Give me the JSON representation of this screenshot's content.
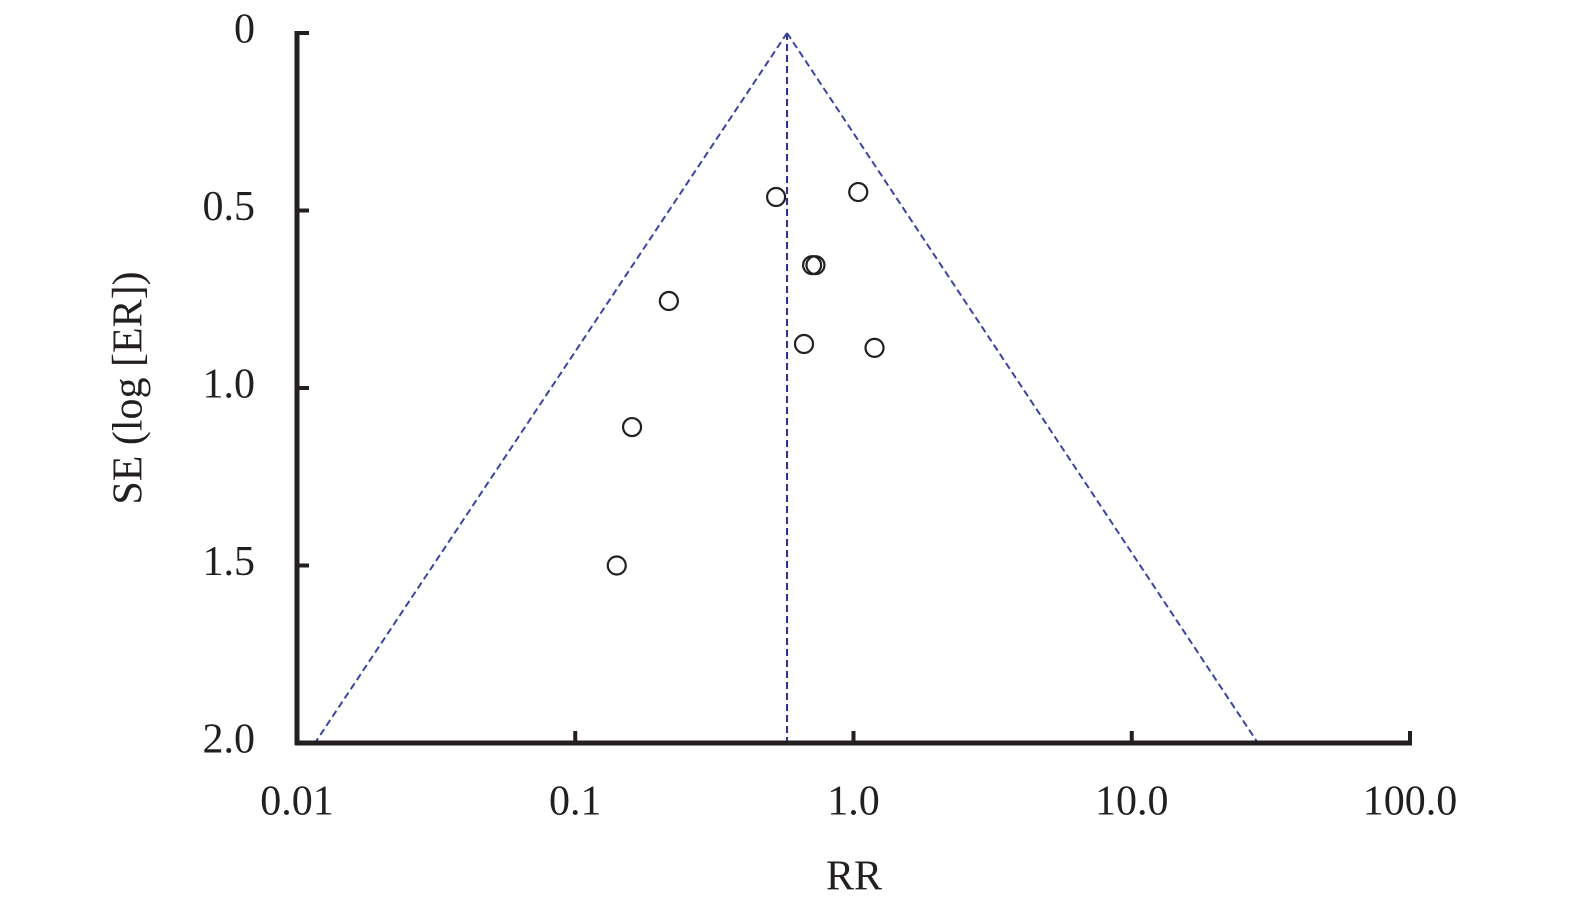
{
  "chart_data": {
    "type": "scatter",
    "x_label": "RR",
    "y_label": "SE (log [ER])",
    "xscale": "log",
    "y_inverted": true,
    "xlim": [
      0.01,
      100
    ],
    "ylim": [
      0,
      2
    ],
    "xticks": [
      0.01,
      0.1,
      {
        "value": 1,
        "label": "1.0"
      },
      {
        "value": 10,
        "label": "10.0"
      },
      {
        "value": 100,
        "label": "100.0"
      }
    ],
    "yticks": [
      0,
      0.5,
      {
        "value": 1,
        "label": "1.0"
      },
      1.5,
      {
        "value": 2,
        "label": "2.0"
      }
    ],
    "color": "#231f20",
    "x": [
      0.527,
      1.04,
      0.71,
      0.73,
      0.217,
      0.664,
      1.19,
      0.16,
      0.141
    ],
    "values": [
      0.462,
      0.448,
      0.654,
      0.654,
      0.755,
      0.876,
      0.887,
      1.11,
      1.5
    ],
    "lines": [
      {
        "x": [
          0.577,
          0.577
        ],
        "y": [
          0,
          2
        ],
        "color": "#2b2f8f",
        "dash": true
      },
      {
        "x": [
          0.577,
          0.0116
        ],
        "y": [
          0,
          2
        ],
        "color": "#3b44a0",
        "dash": true
      },
      {
        "x": [
          0.577,
          28.4
        ],
        "y": [
          0,
          2
        ],
        "color": "#3b44a0",
        "dash": true
      }
    ]
  }
}
